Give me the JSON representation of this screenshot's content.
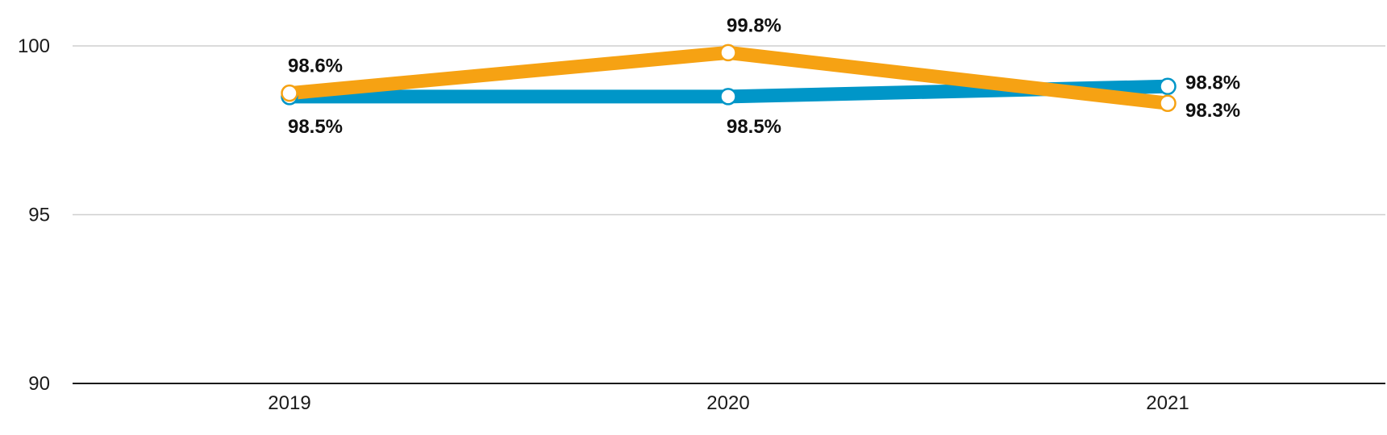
{
  "chart_data": {
    "type": "line",
    "title": "",
    "xlabel": "",
    "ylabel": "",
    "categories": [
      "2019",
      "2020",
      "2021"
    ],
    "ylim": [
      90,
      100
    ],
    "yticks": [
      90,
      95,
      100
    ],
    "grid": true,
    "legend": "none",
    "series": [
      {
        "color": "#0096c8",
        "values": [
          98.5,
          98.5,
          98.8
        ],
        "labels": [
          "98.5%",
          "98.5%",
          "98.8%"
        ]
      },
      {
        "color": "#f6a213",
        "values": [
          98.6,
          99.8,
          98.3
        ],
        "labels": [
          "98.6%",
          "99.8%",
          "98.3%"
        ]
      }
    ]
  }
}
